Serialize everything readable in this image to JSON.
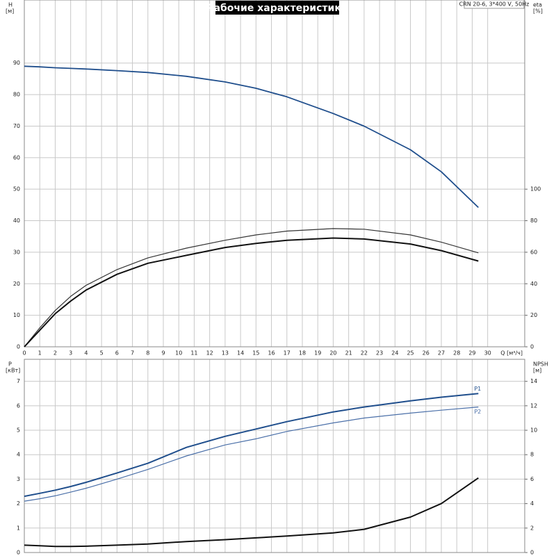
{
  "chart_data": [
    {
      "type": "line",
      "title": "Рабочие характеристики",
      "note": "CRN 20-6, 3*400 V, 50Hz",
      "y_label": "H",
      "y_unit": "[м]",
      "y2_label": "eta",
      "y2_unit": "[%]",
      "x_label": "Q [м³/ч]",
      "x": [
        0,
        1,
        2,
        3,
        4,
        6,
        8,
        10.5,
        13,
        15,
        17,
        20,
        22,
        25,
        27,
        29.4
      ],
      "xlim": [
        0,
        32.4
      ],
      "xticks": [
        0,
        1,
        2,
        3,
        4,
        5,
        6,
        7,
        8,
        9,
        10,
        11,
        12,
        13,
        14,
        15,
        16,
        17,
        18,
        19,
        20,
        21,
        22,
        23,
        24,
        25,
        26,
        27,
        28,
        29,
        30
      ],
      "ylim": [
        0,
        110
      ],
      "yticks": [
        0,
        10,
        20,
        30,
        40,
        50,
        60,
        70,
        80,
        90
      ],
      "y2lim": [
        0,
        220
      ],
      "y2ticks": [
        0,
        20,
        40,
        60,
        80,
        100
      ],
      "grid": true,
      "series": [
        {
          "color": "#1f4e8c",
          "width": 1.8,
          "values": [
            89,
            88.8,
            88.5,
            88.3,
            88.1,
            87.6,
            87,
            85.8,
            84,
            82,
            79.3,
            74,
            70,
            62.5,
            55.5,
            44.2
          ]
        },
        {
          "color": "#333333",
          "width": 1.2,
          "axis": "y2",
          "values": [
            0,
            12,
            23,
            32,
            39,
            49,
            56.4,
            62.6,
            67.6,
            71,
            73.4,
            75,
            74.6,
            71,
            66.4,
            59.6
          ]
        },
        {
          "color": "#111111",
          "width": 2,
          "axis": "y2",
          "values": [
            0,
            10.5,
            21,
            29,
            36,
            46,
            53,
            58,
            63,
            65.6,
            67.6,
            69,
            68.4,
            65.2,
            61,
            54.4
          ]
        }
      ]
    },
    {
      "type": "line",
      "y_label": "P",
      "y_unit": "[кВт]",
      "y2_label": "NPSH",
      "y2_unit": "[м]",
      "x": [
        0,
        1,
        2,
        3,
        4,
        6,
        8,
        10.5,
        13,
        15,
        17,
        20,
        22,
        25,
        27,
        29.4
      ],
      "xlim": [
        0,
        32.4
      ],
      "ylim": [
        0,
        7.9
      ],
      "yticks": [
        0,
        1,
        2,
        3,
        4,
        5,
        6,
        7
      ],
      "y2lim": [
        0,
        15.8
      ],
      "y2ticks": [
        0,
        2,
        4,
        6,
        8,
        10,
        12,
        14
      ],
      "grid": true,
      "series": [
        {
          "name": "P1",
          "color": "#1f4e8c",
          "width": 2,
          "values": [
            2.3,
            2.42,
            2.55,
            2.7,
            2.87,
            3.25,
            3.65,
            4.3,
            4.75,
            5.05,
            5.35,
            5.75,
            5.95,
            6.2,
            6.35,
            6.5
          ]
        },
        {
          "name": "P2",
          "color": "#4a6fa8",
          "width": 1.2,
          "values": [
            2.1,
            2.2,
            2.32,
            2.47,
            2.63,
            3.0,
            3.4,
            3.95,
            4.4,
            4.65,
            4.95,
            5.3,
            5.5,
            5.7,
            5.82,
            5.95
          ]
        },
        {
          "color": "#111111",
          "width": 2,
          "axis": "y2",
          "values": [
            0.6,
            0.55,
            0.5,
            0.5,
            0.52,
            0.6,
            0.7,
            0.9,
            1.05,
            1.2,
            1.35,
            1.6,
            1.9,
            2.9,
            4.0,
            6.1
          ]
        }
      ]
    }
  ]
}
